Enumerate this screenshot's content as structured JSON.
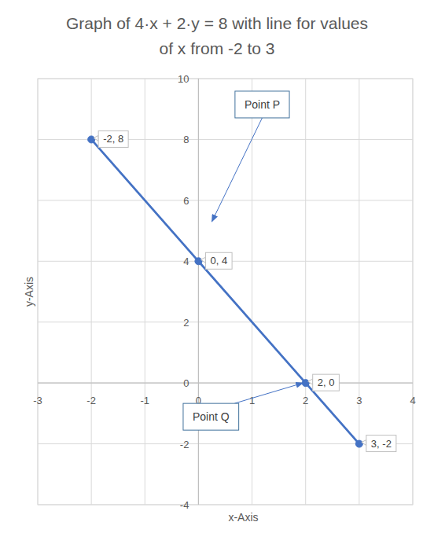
{
  "chart_data": {
    "type": "line",
    "title": "Graph of 4·x + 2·y = 8 with line for values of x from -2 to 3",
    "x_label": "x-Axis",
    "y_label": "y-Axis",
    "x": [
      -2,
      0,
      2,
      3
    ],
    "values": [
      8,
      4,
      0,
      -2
    ],
    "value_labels": [
      "-2, 8",
      "0, 4",
      "2, 0",
      "3, -2"
    ],
    "data_labels": true,
    "color": "#4472c4",
    "marker": "circle",
    "grid": true,
    "xlim": [
      -3,
      4
    ],
    "xticks": [
      -3,
      -2,
      -1,
      0,
      1,
      2,
      3,
      4
    ],
    "ylim": [
      -4,
      10
    ],
    "yticks": [
      -4,
      -2,
      0,
      2,
      4,
      6,
      8,
      10
    ],
    "annotations": [
      {
        "text": "Point P",
        "x": 0.25,
        "y": 5.3
      },
      {
        "text": "Point Q",
        "x": 1.95,
        "y": 0
      }
    ]
  }
}
